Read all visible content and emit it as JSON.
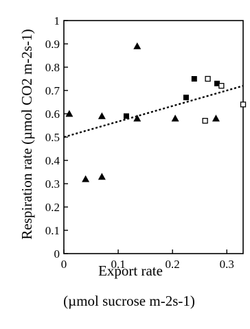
{
  "chart_data": {
    "type": "scatter",
    "title": "",
    "xlabel": "Export rate",
    "xlabel_units": "(µmol sucrose m-2s-1)",
    "ylabel": "Respiration rate (µmol CO2 m-2s-1)",
    "xlim": [
      0,
      0.33
    ],
    "ylim": [
      0,
      1
    ],
    "x_ticks": [
      "0",
      "0.1",
      "0.2",
      "0.3"
    ],
    "y_ticks": [
      "0",
      "0.1",
      "0.2",
      "0.3",
      "0.4",
      "0.5",
      "0.6",
      "0.7",
      "0.8",
      "0.9",
      "1"
    ],
    "grid": false,
    "legend": false,
    "series": [
      {
        "marker": "filled-triangle",
        "points": [
          {
            "x": 0.01,
            "y": 0.6
          },
          {
            "x": 0.04,
            "y": 0.32
          },
          {
            "x": 0.07,
            "y": 0.59
          },
          {
            "x": 0.07,
            "y": 0.33
          },
          {
            "x": 0.135,
            "y": 0.89
          },
          {
            "x": 0.135,
            "y": 0.58
          },
          {
            "x": 0.205,
            "y": 0.58
          },
          {
            "x": 0.28,
            "y": 0.58
          }
        ]
      },
      {
        "marker": "filled-square",
        "points": [
          {
            "x": 0.115,
            "y": 0.59
          },
          {
            "x": 0.225,
            "y": 0.67
          },
          {
            "x": 0.24,
            "y": 0.75
          },
          {
            "x": 0.282,
            "y": 0.73
          }
        ]
      },
      {
        "marker": "open-square",
        "points": [
          {
            "x": 0.26,
            "y": 0.57
          },
          {
            "x": 0.265,
            "y": 0.75
          },
          {
            "x": 0.29,
            "y": 0.72
          },
          {
            "x": 0.33,
            "y": 0.64
          }
        ]
      }
    ],
    "trendline": {
      "style": "dotted",
      "x": [
        0,
        0.33
      ],
      "y": [
        0.5,
        0.72
      ]
    }
  }
}
